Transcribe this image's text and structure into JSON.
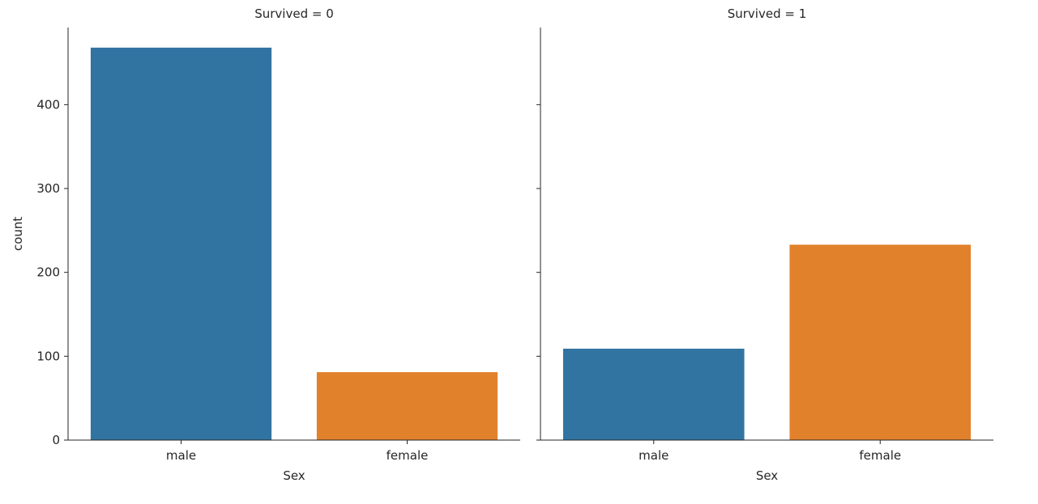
{
  "chart_data": {
    "type": "bar",
    "facets": [
      {
        "title": "Survived = 0",
        "categories": [
          "male",
          "female"
        ],
        "values": [
          468,
          81
        ],
        "xlabel": "Sex",
        "ylabel": "count"
      },
      {
        "title": "Survived = 1",
        "categories": [
          "male",
          "female"
        ],
        "values": [
          109,
          233
        ],
        "xlabel": "Sex",
        "ylabel": ""
      }
    ],
    "category_colors": {
      "male": "#3274a1",
      "female": "#e1812c"
    },
    "ylim": [
      0,
      492
    ],
    "yticks": [
      0,
      100,
      200,
      300,
      400
    ],
    "sharey": true,
    "grid": false,
    "legend": false
  }
}
